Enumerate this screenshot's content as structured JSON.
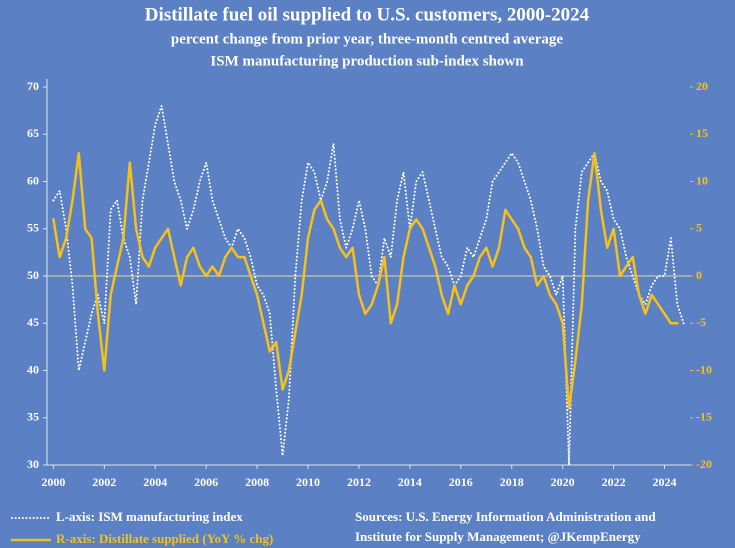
{
  "chart_data": {
    "type": "line",
    "title": "Distillate fuel oil supplied to U.S. customers, 2000-2024",
    "subtitle": [
      "percent change from prior year, three-month centred average",
      "ISM manufacturing production sub-index shown"
    ],
    "sources": [
      "Sources: U.S. Energy Information Administration and",
      "Institute for Supply Management; @JKempEnergy"
    ],
    "x": [
      2000,
      2000.25,
      2000.5,
      2000.75,
      2001,
      2001.25,
      2001.5,
      2001.75,
      2002,
      2002.25,
      2002.5,
      2002.75,
      2003,
      2003.25,
      2003.5,
      2003.75,
      2004,
      2004.25,
      2004.5,
      2004.75,
      2005,
      2005.25,
      2005.5,
      2005.75,
      2006,
      2006.25,
      2006.5,
      2006.75,
      2007,
      2007.25,
      2007.5,
      2007.75,
      2008,
      2008.25,
      2008.5,
      2008.75,
      2009,
      2009.25,
      2009.5,
      2009.75,
      2010,
      2010.25,
      2010.5,
      2010.75,
      2011,
      2011.25,
      2011.5,
      2011.75,
      2012,
      2012.25,
      2012.5,
      2012.75,
      2013,
      2013.25,
      2013.5,
      2013.75,
      2014,
      2014.25,
      2014.5,
      2014.75,
      2015,
      2015.25,
      2015.5,
      2015.75,
      2016,
      2016.25,
      2016.5,
      2016.75,
      2017,
      2017.25,
      2017.5,
      2017.75,
      2018,
      2018.25,
      2018.5,
      2018.75,
      2019,
      2019.25,
      2019.5,
      2019.75,
      2020,
      2020.25,
      2020.5,
      2020.75,
      2021,
      2021.25,
      2021.5,
      2021.75,
      2022,
      2022.25,
      2022.5,
      2022.75,
      2023,
      2023.25,
      2023.5,
      2023.75,
      2024,
      2024.25,
      2024.5,
      2024.75
    ],
    "series": [
      {
        "name": "L-axis: ISM manufacturing index",
        "color": "#ffffff",
        "style": "dotted",
        "axis": "y",
        "values": [
          58,
          59,
          55,
          49,
          40,
          43,
          46,
          48,
          45,
          57,
          58,
          54,
          52,
          47,
          58,
          62,
          66,
          68,
          64,
          60,
          58,
          55,
          57,
          60,
          62,
          58,
          56,
          54,
          53,
          55,
          54,
          52,
          49,
          48,
          46,
          38,
          31,
          37,
          50,
          58,
          62,
          61,
          58,
          60,
          64,
          56,
          53,
          55,
          58,
          55,
          50,
          49,
          54,
          52,
          58,
          61,
          55,
          60,
          61,
          58,
          55,
          52,
          51,
          49,
          50,
          53,
          52,
          54,
          56,
          60,
          61,
          62,
          63,
          62,
          60,
          58,
          55,
          51,
          50,
          48,
          50,
          30,
          55,
          61,
          62,
          63,
          60,
          59,
          56,
          55,
          52,
          50,
          48,
          47,
          49,
          50,
          50,
          54,
          47,
          45
        ]
      },
      {
        "name": "R-axis: Distillate supplied (YoY % chg)",
        "color": "#f5c11a",
        "style": "solid",
        "axis": "y2",
        "values": [
          6,
          2,
          4,
          8,
          13,
          5,
          4,
          -4,
          -10,
          -2,
          1,
          4,
          12,
          5,
          2,
          1,
          3,
          4,
          5,
          2,
          -1,
          2,
          3,
          1,
          0,
          1,
          0,
          2,
          3,
          2,
          2,
          0,
          -2,
          -5,
          -8,
          -7,
          -12,
          -10,
          -6,
          -2,
          4,
          7,
          8,
          6,
          5,
          3,
          2,
          3,
          -2,
          -4,
          -3,
          -1,
          2,
          -5,
          -3,
          2,
          5,
          6,
          5,
          3,
          1,
          -2,
          -4,
          -1,
          -3,
          -1,
          0,
          2,
          3,
          1,
          3,
          7,
          6,
          5,
          3,
          2,
          -1,
          0,
          -2,
          -3,
          -5,
          -14,
          -9,
          -3,
          8,
          13,
          7,
          3,
          5,
          0,
          1,
          2,
          -2,
          -4,
          -2,
          -3,
          -4,
          -5,
          -5,
          null
        ]
      }
    ],
    "xlim": [
      1999.75,
      2025
    ],
    "xticks": [
      2000,
      2002,
      2004,
      2006,
      2008,
      2010,
      2012,
      2014,
      2016,
      2018,
      2020,
      2022,
      2024
    ],
    "ylim": [
      30,
      70
    ],
    "yticks": [
      30,
      35,
      40,
      45,
      50,
      55,
      60,
      65,
      70
    ],
    "y2lim": [
      -20,
      20
    ],
    "y2ticks": [
      -20,
      -15,
      -10,
      -5,
      0,
      5,
      10,
      15,
      20
    ]
  }
}
